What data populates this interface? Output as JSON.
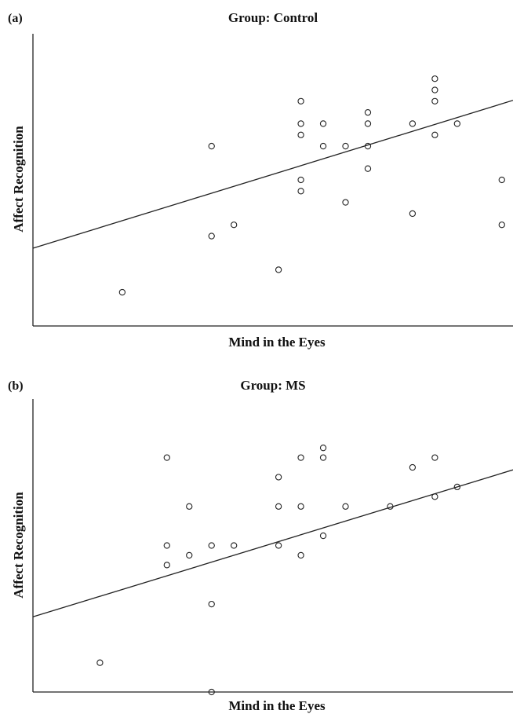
{
  "chart_data": [
    {
      "type": "scatter",
      "panel_label": "(a)",
      "title": "Group: Control",
      "xlabel": "Mind in the Eyes",
      "ylabel": "Affect Recognition",
      "xlim": [
        0,
        21.5
      ],
      "ylim": [
        0,
        13
      ],
      "grid": false,
      "legend": "none",
      "axis_tick_labels": false,
      "points": [
        {
          "x": 4,
          "y": 1.5
        },
        {
          "x": 8,
          "y": 8
        },
        {
          "x": 8,
          "y": 4
        },
        {
          "x": 9,
          "y": 4.5
        },
        {
          "x": 11,
          "y": 2.5
        },
        {
          "x": 12,
          "y": 10
        },
        {
          "x": 12,
          "y": 9
        },
        {
          "x": 12,
          "y": 8.5
        },
        {
          "x": 12,
          "y": 6.5
        },
        {
          "x": 12,
          "y": 6
        },
        {
          "x": 13,
          "y": 9
        },
        {
          "x": 13,
          "y": 8
        },
        {
          "x": 14,
          "y": 8
        },
        {
          "x": 14,
          "y": 5.5
        },
        {
          "x": 15,
          "y": 9.5
        },
        {
          "x": 15,
          "y": 9
        },
        {
          "x": 15,
          "y": 8
        },
        {
          "x": 15,
          "y": 7
        },
        {
          "x": 17,
          "y": 9
        },
        {
          "x": 17,
          "y": 5
        },
        {
          "x": 18,
          "y": 11
        },
        {
          "x": 18,
          "y": 10.5
        },
        {
          "x": 18,
          "y": 10
        },
        {
          "x": 18,
          "y": 8.5
        },
        {
          "x": 19,
          "y": 9
        },
        {
          "x": 21,
          "y": 6.5
        },
        {
          "x": 21,
          "y": 4.5
        }
      ],
      "fit_line": {
        "slope": 0.306,
        "intercept": 3.46
      }
    },
    {
      "type": "scatter",
      "panel_label": "(b)",
      "title": "Group: MS",
      "xlabel": "Mind in the Eyes",
      "ylabel": "Affect Recognition",
      "xlim": [
        0,
        21.5
      ],
      "ylim": [
        0,
        15
      ],
      "grid": false,
      "legend": "none",
      "axis_tick_labels": false,
      "points": [
        {
          "x": 3,
          "y": 1.5
        },
        {
          "x": 6,
          "y": 12
        },
        {
          "x": 6,
          "y": 7.5
        },
        {
          "x": 6,
          "y": 6.5
        },
        {
          "x": 7,
          "y": 9.5
        },
        {
          "x": 7,
          "y": 7
        },
        {
          "x": 8,
          "y": 7.5
        },
        {
          "x": 8,
          "y": 4.5
        },
        {
          "x": 8,
          "y": 0
        },
        {
          "x": 9,
          "y": 7.5
        },
        {
          "x": 11,
          "y": 11
        },
        {
          "x": 11,
          "y": 9.5
        },
        {
          "x": 11,
          "y": 7.5
        },
        {
          "x": 12,
          "y": 12
        },
        {
          "x": 12,
          "y": 9.5
        },
        {
          "x": 12,
          "y": 7
        },
        {
          "x": 13,
          "y": 12.5
        },
        {
          "x": 13,
          "y": 12
        },
        {
          "x": 13,
          "y": 8
        },
        {
          "x": 14,
          "y": 9.5
        },
        {
          "x": 16,
          "y": 9.5
        },
        {
          "x": 17,
          "y": 11.5
        },
        {
          "x": 18,
          "y": 12
        },
        {
          "x": 18,
          "y": 10
        },
        {
          "x": 19,
          "y": 10.5
        }
      ],
      "fit_line": {
        "slope": 0.35,
        "intercept": 3.85
      }
    }
  ]
}
